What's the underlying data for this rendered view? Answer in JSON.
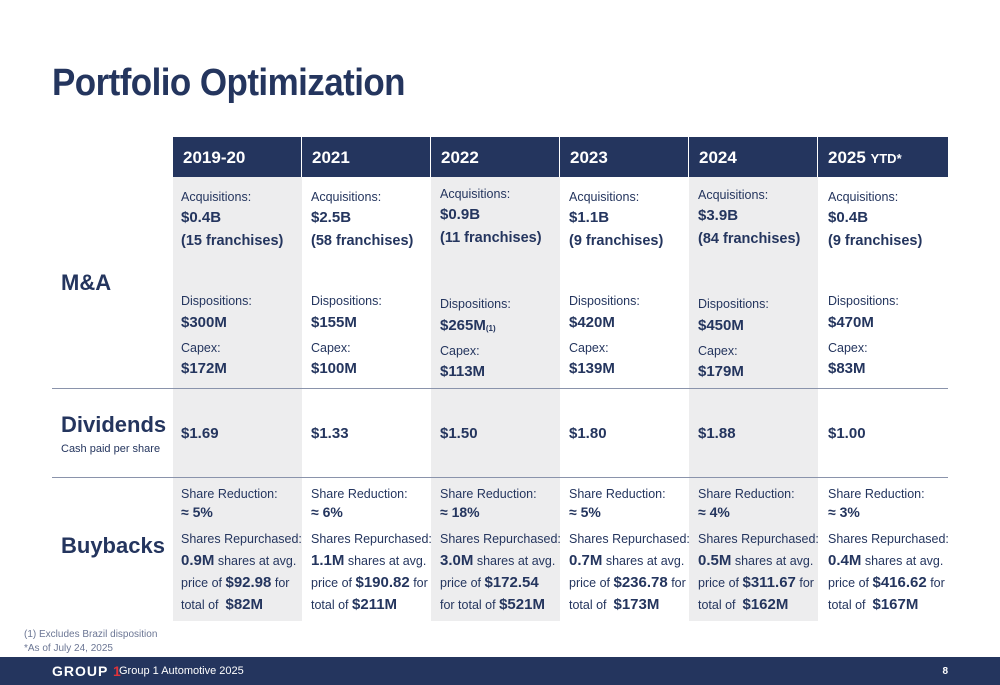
{
  "title": "Portfolio Optimization",
  "rows": {
    "ma": "M&A",
    "dividends": "Dividends",
    "dividends_sub": "Cash paid per share",
    "buybacks": "Buybacks"
  },
  "labels": {
    "acquisitions": "Acquisitions:",
    "dispositions": "Dispositions:",
    "capex": "Capex:",
    "share_reduction": "Share Reduction:",
    "shares_repurchased": "Shares Repurchased:",
    "shares_at_avg": "shares at avg.",
    "price_of": "price of",
    "for": "for",
    "total_of": "total of",
    "for_total_of": "for total of"
  },
  "columns": [
    {
      "year": "2019-20",
      "ytd": "",
      "acq_value": "$0.4B",
      "acq_franchises": "(15 franchises)",
      "disp_value": "$300M",
      "disp_note": "",
      "capex": "$172M",
      "dividend": "$1.69",
      "share_reduction": "≈ 5%",
      "shares": "0.9M",
      "avg_price": "$92.98",
      "total": "$82M"
    },
    {
      "year": "2021",
      "ytd": "",
      "acq_value": "$2.5B",
      "acq_franchises": "(58 franchises)",
      "disp_value": "$155M",
      "disp_note": "",
      "capex": "$100M",
      "dividend": "$1.33",
      "share_reduction": "≈ 6%",
      "shares": "1.1M",
      "avg_price": "$190.82",
      "total": "$211M"
    },
    {
      "year": "2022",
      "ytd": "",
      "acq_value": "$0.9B",
      "acq_franchises": "(11 franchises)",
      "disp_value": "$265M",
      "disp_note": "(1)",
      "capex": "$113M",
      "dividend": "$1.50",
      "share_reduction": "≈ 18%",
      "shares": "3.0M",
      "avg_price": "$172.54",
      "total": "$521M"
    },
    {
      "year": "2023",
      "ytd": "",
      "acq_value": "$1.1B",
      "acq_franchises": "(9 franchises)",
      "disp_value": "$420M",
      "disp_note": "",
      "capex": "$139M",
      "dividend": "$1.80",
      "share_reduction": "≈ 5%",
      "shares": "0.7M",
      "avg_price": "$236.78",
      "total": "$173M"
    },
    {
      "year": "2024",
      "ytd": "",
      "acq_value": "$3.9B",
      "acq_franchises": "(84 franchises)",
      "disp_value": "$450M",
      "disp_note": "",
      "capex": "$179M",
      "dividend": "$1.88",
      "share_reduction": "≈ 4%",
      "shares": "0.5M",
      "avg_price": "$311.67",
      "total": "$162M"
    },
    {
      "year": "2025",
      "ytd": "YTD*",
      "acq_value": "$0.4B",
      "acq_franchises": "(9 franchises)",
      "disp_value": "$470M",
      "disp_note": "",
      "capex": "$83M",
      "dividend": "$1.00",
      "share_reduction": "≈ 3%",
      "shares": "0.4M",
      "avg_price": "$416.62",
      "total": "$167M"
    }
  ],
  "footnotes": [
    "(1) Excludes Brazil disposition",
    "*As of July 24, 2025"
  ],
  "footer": {
    "logo_text": "GROUP",
    "logo_num": "1",
    "text": "Group 1 Automotive 2025",
    "page": "8"
  },
  "colors": {
    "navy": "#24355e",
    "shade": "#ededee",
    "logo_red": "#e0333a"
  }
}
